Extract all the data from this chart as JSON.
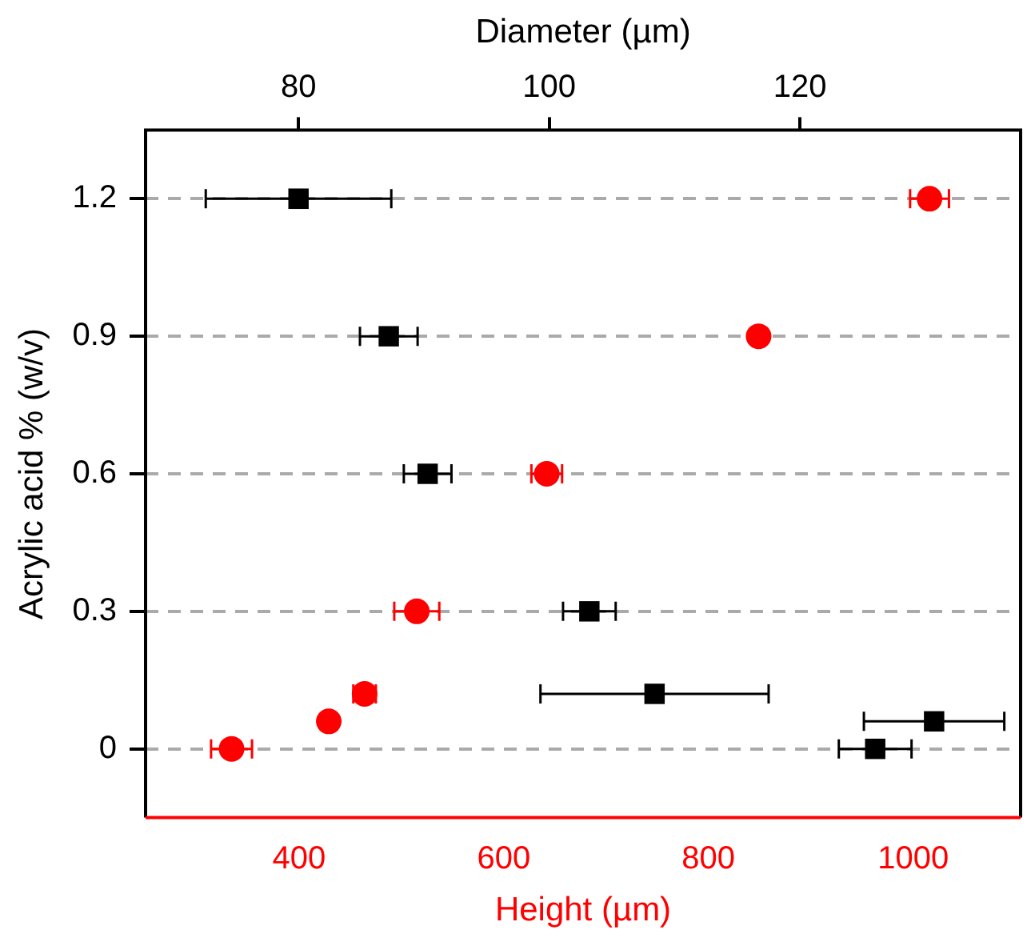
{
  "chart_data": {
    "type": "scatter",
    "xlabel": "Height (µm)",
    "x2label": "Diameter (µm)",
    "ylabel": "Acrylic acid % (w/v)",
    "xlim": [
      250,
      1105
    ],
    "xticks": [
      400,
      600,
      800,
      1000
    ],
    "x2lim": [
      67.8,
      137.6
    ],
    "x2ticks": [
      80,
      100,
      120
    ],
    "ylim": [
      -0.15,
      1.35
    ],
    "yticks": [
      0,
      0.3,
      0.6,
      0.9,
      1.2
    ],
    "grid": "y",
    "legend": false,
    "series": [
      {
        "color": "#ff0000",
        "marker": "circle",
        "x": [
          334,
          429,
          464,
          515,
          642,
          849,
          1016
        ],
        "values": [
          0,
          0.06,
          0.12,
          0.3,
          0.6,
          0.9,
          1.2
        ],
        "xerrors": [
          20,
          null,
          11,
          22,
          15,
          null,
          19
        ]
      },
      {
        "axis": "x2",
        "color": "#000000",
        "marker": "square",
        "x": [
          126,
          130.7,
          108.4,
          103.2,
          90.3,
          87.2,
          80
        ],
        "values": [
          0,
          0.06,
          0.12,
          0.3,
          0.6,
          0.9,
          1.2
        ],
        "xerrors": [
          2.9,
          5.6,
          9.1,
          2.1,
          1.9,
          2.3,
          7.4
        ]
      }
    ]
  }
}
